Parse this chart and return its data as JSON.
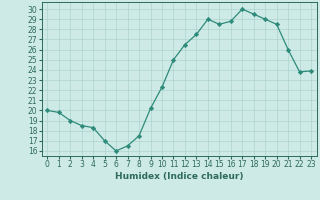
{
  "x": [
    0,
    1,
    2,
    3,
    4,
    5,
    6,
    7,
    8,
    9,
    10,
    11,
    12,
    13,
    14,
    15,
    16,
    17,
    18,
    19,
    20,
    21,
    22,
    23
  ],
  "y": [
    20,
    19.8,
    19,
    18.5,
    18.3,
    17,
    16,
    16.5,
    17.5,
    20.2,
    22.3,
    25,
    26.5,
    27.5,
    29,
    28.5,
    28.8,
    30,
    29.5,
    29,
    28.5,
    26,
    23.8,
    23.9
  ],
  "line_color": "#2e8b7a",
  "marker": "D",
  "marker_size": 2.2,
  "bg_color": "#ceeae6",
  "grid_color": "#aed4cf",
  "tick_color": "#2e6b5a",
  "xlabel": "Humidex (Indice chaleur)",
  "ylim": [
    15.5,
    30.7
  ],
  "xlim": [
    -0.5,
    23.5
  ],
  "yticks": [
    16,
    17,
    18,
    19,
    20,
    21,
    22,
    23,
    24,
    25,
    26,
    27,
    28,
    29,
    30
  ],
  "xticks": [
    0,
    1,
    2,
    3,
    4,
    5,
    6,
    7,
    8,
    9,
    10,
    11,
    12,
    13,
    14,
    15,
    16,
    17,
    18,
    19,
    20,
    21,
    22,
    23
  ],
  "xlabel_fontsize": 6.5,
  "tick_fontsize": 5.5,
  "lw": 0.9
}
